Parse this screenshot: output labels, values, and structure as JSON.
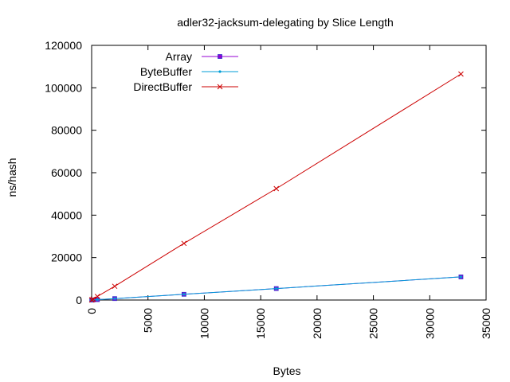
{
  "chart_data": {
    "type": "line",
    "title": "adler32-jacksum-delegating by Slice Length",
    "xlabel": "Bytes",
    "ylabel": "ns/hash",
    "xlim": [
      0,
      35000
    ],
    "ylim": [
      0,
      120000
    ],
    "xticks": [
      0,
      5000,
      10000,
      15000,
      20000,
      25000,
      30000,
      35000
    ],
    "yticks": [
      0,
      20000,
      40000,
      60000,
      80000,
      100000,
      120000
    ],
    "x_tick_labels": [
      "0",
      "5000",
      "10000",
      "15000",
      "20000",
      "25000",
      "30000",
      "35000"
    ],
    "y_tick_labels": [
      "0",
      "20000",
      "40000",
      "60000",
      "80000",
      "100000",
      "120000"
    ],
    "grid": false,
    "legend_position": "top-left",
    "x": [
      8,
      32,
      128,
      512,
      2048,
      8192,
      16384,
      32768
    ],
    "series": [
      {
        "name": "Array",
        "color": "#9400d3",
        "marker": "square",
        "values": [
          10,
          20,
          50,
          180,
          680,
          2700,
          5400,
          10900
        ]
      },
      {
        "name": "ByteBuffer",
        "color": "#009ed7",
        "marker": "dot",
        "values": [
          10,
          20,
          50,
          180,
          680,
          2700,
          5400,
          10900
        ]
      },
      {
        "name": "DirectBuffer",
        "color": "#cc0000",
        "marker": "cross",
        "values": [
          30,
          110,
          420,
          1700,
          6500,
          26700,
          52500,
          106500
        ]
      }
    ]
  }
}
